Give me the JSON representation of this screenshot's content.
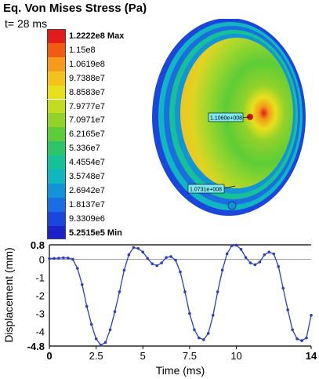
{
  "header": {
    "title": "Eq. Von Mises Stress (Pa)",
    "time_label": "t= 28 ms"
  },
  "legend": {
    "entries": [
      {
        "label": "1.2222e8 Max",
        "color": "#e31b1b",
        "bold": true
      },
      {
        "label": "1.15e8",
        "color": "#f25b12"
      },
      {
        "label": "1.0619e8",
        "color": "#f59a1a"
      },
      {
        "label": "9.7388e7",
        "color": "#f3c21f"
      },
      {
        "label": "8.8583e7",
        "color": "#e8e01c"
      },
      {
        "label": "7.9777e7",
        "color": "#c2dc23"
      },
      {
        "label": "7.0971e7",
        "color": "#92d22a"
      },
      {
        "label": "6.2165e7",
        "color": "#5ccd36"
      },
      {
        "label": "5.336e7",
        "color": "#2ec468"
      },
      {
        "label": "4.4554e7",
        "color": "#16c197"
      },
      {
        "label": "3.5748e7",
        "color": "#10b6c0"
      },
      {
        "label": "2.6942e7",
        "color": "#1393d8"
      },
      {
        "label": "1.8137e7",
        "color": "#1a6ee2"
      },
      {
        "label": "9.3309e6",
        "color": "#1b46dd"
      },
      {
        "label": "5.2515e5 Min",
        "color": "#1a22c8",
        "bold": true
      }
    ]
  },
  "probes": [
    {
      "label": "1.1060e+008"
    },
    {
      "label": "1.0731e+008"
    }
  ],
  "chart_data": {
    "type": "line",
    "xlabel": "Time (ms)",
    "ylabel": "Displacement (mm)",
    "xlim": [
      0,
      14
    ],
    "ylim": [
      -4.8,
      0.8
    ],
    "x_ticks": [
      "0",
      "2.5",
      "5",
      "7.5",
      "10",
      "14"
    ],
    "x_tick_values": [
      0,
      2.5,
      5,
      7.5,
      10,
      14
    ],
    "y_ticks": [
      "0.8",
      "0",
      "-1",
      "-2",
      "-3",
      "-4",
      "-4.8"
    ],
    "y_tick_values": [
      0.8,
      0,
      -1,
      -2,
      -3,
      -4,
      -4.8
    ],
    "grid": false,
    "line_color": "#2b3fc0",
    "x": [
      0,
      0.25,
      0.5,
      0.75,
      1,
      1.25,
      1.5,
      1.75,
      2,
      2.25,
      2.5,
      2.75,
      3,
      3.25,
      3.5,
      3.75,
      4,
      4.25,
      4.5,
      4.75,
      5,
      5.25,
      5.5,
      5.75,
      6,
      6.25,
      6.5,
      6.75,
      7,
      7.25,
      7.5,
      7.75,
      8,
      8.25,
      8.5,
      8.75,
      9,
      9.25,
      9.5,
      9.75,
      10,
      10.25,
      10.5,
      10.75,
      11,
      11.25,
      11.5,
      11.75,
      12,
      12.25,
      12.5,
      12.75,
      13,
      13.25,
      13.5,
      13.75,
      14
    ],
    "y": [
      0.04,
      0.05,
      0.06,
      0.08,
      0.07,
      0.0,
      -0.5,
      -1.4,
      -2.6,
      -3.6,
      -4.4,
      -4.75,
      -4.6,
      -3.9,
      -2.9,
      -1.8,
      -0.6,
      0.25,
      0.65,
      0.6,
      0.4,
      0.05,
      -0.25,
      -0.35,
      -0.2,
      0.1,
      0.15,
      -0.05,
      -0.7,
      -1.8,
      -3.0,
      -3.9,
      -4.35,
      -4.45,
      -4.1,
      -3.1,
      -1.8,
      -0.6,
      0.3,
      0.75,
      0.78,
      0.55,
      0.1,
      -0.2,
      -0.3,
      -0.15,
      0.25,
      0.4,
      0.3,
      -0.4,
      -1.6,
      -2.8,
      -3.9,
      -4.4,
      -4.5,
      -4.35,
      -3.1
    ]
  }
}
